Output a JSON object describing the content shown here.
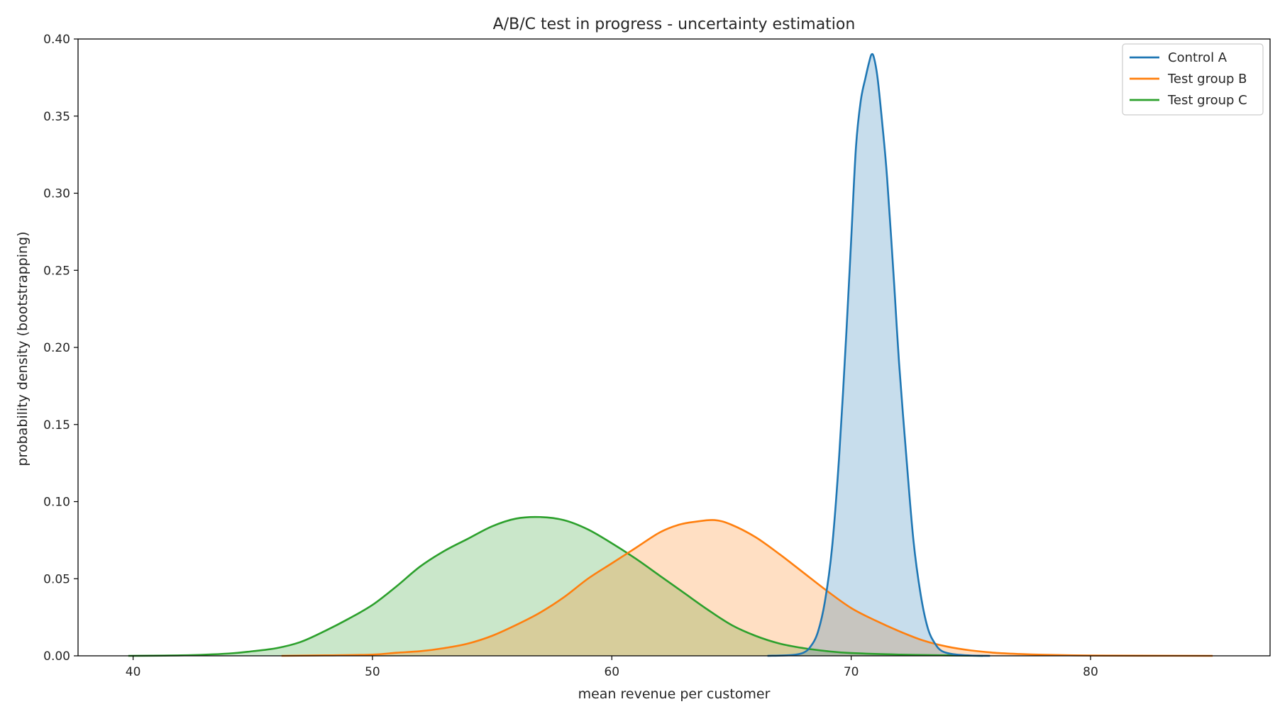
{
  "chart_data": {
    "type": "area",
    "title": "A/B/C test in progress - uncertainty estimation",
    "xlabel": "mean revenue per customer",
    "ylabel": "probability density (bootstrapping)",
    "xlim": [
      37.7,
      87.5
    ],
    "ylim": [
      0,
      0.4
    ],
    "xticks": [
      40,
      50,
      60,
      70,
      80
    ],
    "xtick_labels": [
      "40",
      "50",
      "60",
      "70",
      "80"
    ],
    "yticks": [
      0,
      0.05,
      0.1,
      0.15,
      0.2,
      0.25,
      0.3,
      0.35,
      0.4
    ],
    "ytick_labels": [
      "0.00",
      "0.05",
      "0.10",
      "0.15",
      "0.20",
      "0.25",
      "0.30",
      "0.35",
      "0.40"
    ],
    "grid": false,
    "legend_position": "top-right",
    "series": [
      {
        "name": "Control A",
        "color": "#1f77b4",
        "points": [
          [
            66.5,
            0
          ],
          [
            67.5,
            0.0005
          ],
          [
            68.0,
            0.002
          ],
          [
            68.3,
            0.006
          ],
          [
            68.6,
            0.015
          ],
          [
            68.9,
            0.035
          ],
          [
            69.2,
            0.07
          ],
          [
            69.5,
            0.13
          ],
          [
            69.8,
            0.21
          ],
          [
            70.0,
            0.27
          ],
          [
            70.2,
            0.33
          ],
          [
            70.4,
            0.36
          ],
          [
            70.6,
            0.375
          ],
          [
            70.75,
            0.385
          ],
          [
            70.85,
            0.39
          ],
          [
            70.95,
            0.388
          ],
          [
            71.1,
            0.375
          ],
          [
            71.3,
            0.345
          ],
          [
            71.5,
            0.31
          ],
          [
            71.8,
            0.24
          ],
          [
            72.0,
            0.19
          ],
          [
            72.3,
            0.13
          ],
          [
            72.6,
            0.075
          ],
          [
            72.9,
            0.04
          ],
          [
            73.2,
            0.018
          ],
          [
            73.5,
            0.008
          ],
          [
            73.8,
            0.003
          ],
          [
            74.3,
            0.001
          ],
          [
            75.0,
            0.0002
          ],
          [
            75.8,
            0
          ]
        ]
      },
      {
        "name": "Test group B",
        "color": "#ff7f0e",
        "points": [
          [
            46.2,
            0
          ],
          [
            48,
            0.0003
          ],
          [
            50,
            0.0008
          ],
          [
            51,
            0.002
          ],
          [
            52,
            0.003
          ],
          [
            53,
            0.005
          ],
          [
            54,
            0.008
          ],
          [
            55,
            0.013
          ],
          [
            56,
            0.02
          ],
          [
            57,
            0.028
          ],
          [
            58,
            0.038
          ],
          [
            59,
            0.05
          ],
          [
            60,
            0.06
          ],
          [
            61,
            0.07
          ],
          [
            62,
            0.08
          ],
          [
            62.8,
            0.085
          ],
          [
            63.5,
            0.087
          ],
          [
            64.3,
            0.088
          ],
          [
            65,
            0.085
          ],
          [
            66,
            0.077
          ],
          [
            67,
            0.066
          ],
          [
            68,
            0.054
          ],
          [
            69,
            0.042
          ],
          [
            70,
            0.031
          ],
          [
            71,
            0.023
          ],
          [
            72,
            0.016
          ],
          [
            73,
            0.01
          ],
          [
            74,
            0.006
          ],
          [
            75,
            0.0035
          ],
          [
            76,
            0.002
          ],
          [
            77,
            0.0012
          ],
          [
            78,
            0.0007
          ],
          [
            80,
            0.0002
          ],
          [
            82,
            0.0001
          ],
          [
            85.1,
            0
          ]
        ]
      },
      {
        "name": "Test group C",
        "color": "#2ca02c",
        "points": [
          [
            39.8,
            0
          ],
          [
            42,
            0.0003
          ],
          [
            44,
            0.0015
          ],
          [
            45,
            0.003
          ],
          [
            46,
            0.005
          ],
          [
            47,
            0.009
          ],
          [
            48,
            0.016
          ],
          [
            49,
            0.024
          ],
          [
            50,
            0.033
          ],
          [
            51,
            0.045
          ],
          [
            52,
            0.058
          ],
          [
            53,
            0.068
          ],
          [
            54,
            0.076
          ],
          [
            55,
            0.084
          ],
          [
            56,
            0.089
          ],
          [
            57,
            0.09
          ],
          [
            58,
            0.088
          ],
          [
            59,
            0.082
          ],
          [
            60,
            0.073
          ],
          [
            61,
            0.063
          ],
          [
            62,
            0.052
          ],
          [
            63,
            0.041
          ],
          [
            64,
            0.03
          ],
          [
            65,
            0.02
          ],
          [
            66,
            0.013
          ],
          [
            67,
            0.008
          ],
          [
            68,
            0.005
          ],
          [
            69,
            0.003
          ],
          [
            70,
            0.0018
          ],
          [
            72,
            0.0008
          ],
          [
            74,
            0.0003
          ],
          [
            75.5,
            0
          ]
        ]
      }
    ]
  }
}
